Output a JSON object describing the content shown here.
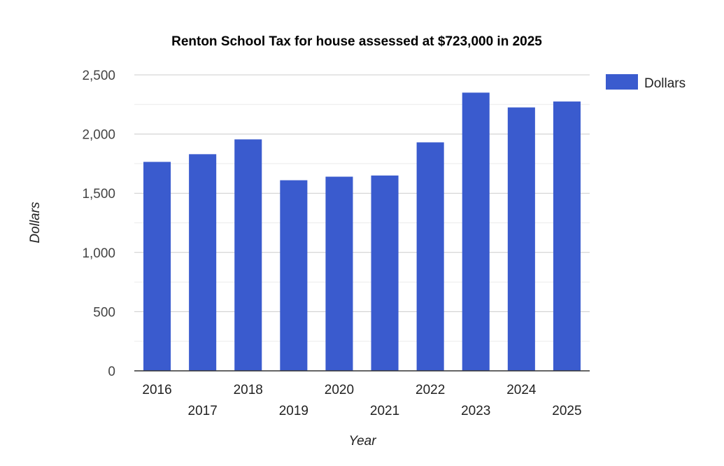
{
  "chart_data": {
    "type": "bar",
    "title": "Renton School Tax for house assessed at $723,000 in 2025",
    "xlabel": "Year",
    "ylabel": "Dollars",
    "categories": [
      "2016",
      "2017",
      "2018",
      "2019",
      "2020",
      "2021",
      "2022",
      "2023",
      "2024",
      "2025"
    ],
    "series": [
      {
        "name": "Dollars",
        "color": "#3a5bce",
        "values": [
          1765,
          1830,
          1955,
          1610,
          1640,
          1650,
          1930,
          2350,
          2225,
          2275
        ]
      }
    ],
    "ylim": [
      0,
      2500
    ],
    "yticks": [
      0,
      500,
      1000,
      1500,
      2000,
      2500
    ],
    "ytick_labels": [
      "0",
      "500",
      "1,000",
      "1,500",
      "2,000",
      "2,500"
    ],
    "grid": true,
    "minor_grid": true,
    "legend_position": "right"
  }
}
